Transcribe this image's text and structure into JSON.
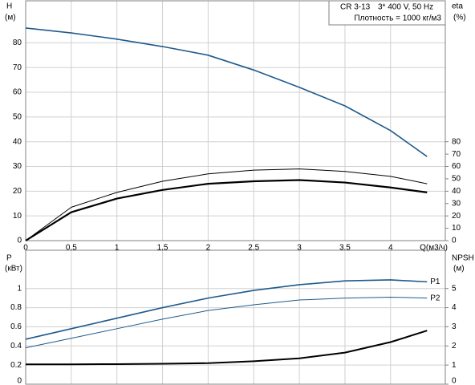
{
  "chart_data": [
    {
      "type": "line",
      "annotations": [
        "CR 3-13",
        "3* 400 V, 50 Hz",
        "Плотность = 1000 кг/м3"
      ],
      "ylabel": "H",
      "ylabel_unit": "(м)",
      "y2label": "eta",
      "y2label_unit": "(%)",
      "xlabel": "Q(м3/ч)",
      "x": [
        0,
        0.5,
        1,
        1.5,
        2,
        2.5,
        3,
        3.5,
        4,
        4.4
      ],
      "xlim": [
        0,
        4.6
      ],
      "xticks": [
        0,
        0.5,
        1,
        1.5,
        2,
        2.5,
        3,
        3.5,
        4
      ],
      "ylim": [
        0,
        97
      ],
      "yticks": [
        0,
        10,
        20,
        30,
        40,
        50,
        60,
        70,
        80
      ],
      "y2lim": [
        0,
        194
      ],
      "y2ticks": [
        0,
        10,
        20,
        30,
        40,
        50,
        60,
        70,
        80
      ],
      "grid": true,
      "series": [
        {
          "color": "#1f5a8c",
          "values": [
            86,
            84,
            81.5,
            78.5,
            75,
            69,
            62,
            54.5,
            44.5,
            34
          ]
        },
        {
          "color": "#000000",
          "axis": "y2",
          "values": [
            0,
            27,
            39,
            48,
            54,
            57,
            58,
            56,
            52,
            46
          ]
        },
        {
          "color": "#000000",
          "axis": "y2",
          "values": [
            0,
            23,
            34,
            41,
            46,
            48,
            49,
            47,
            43,
            39
          ]
        }
      ]
    },
    {
      "type": "line",
      "ylabel": "P",
      "ylabel_unit": "(кВт)",
      "y2label": "NPSH",
      "y2label_unit": "(м)",
      "x": [
        0,
        0.5,
        1,
        1.5,
        2,
        2.5,
        3,
        3.5,
        4,
        4.4
      ],
      "xlim": [
        0,
        4.6
      ],
      "ylim": [
        0,
        1.4
      ],
      "yticks": [
        0,
        0.2,
        0.4,
        0.6,
        0.8,
        1
      ],
      "y2lim": [
        0,
        7
      ],
      "y2ticks": [
        0,
        1,
        2,
        3,
        4,
        5
      ],
      "grid": true,
      "series": [
        {
          "name": "P1",
          "color": "#1f5a8c",
          "values": [
            0.47,
            0.58,
            0.69,
            0.8,
            0.9,
            0.98,
            1.04,
            1.08,
            1.09,
            1.07
          ]
        },
        {
          "name": "P2",
          "color": "#1f5a8c",
          "values": [
            0.38,
            0.48,
            0.58,
            0.68,
            0.77,
            0.83,
            0.88,
            0.9,
            0.91,
            0.9
          ]
        },
        {
          "color": "#000000",
          "axis": "y2",
          "values": [
            1.04,
            1.04,
            1.05,
            1.07,
            1.1,
            1.2,
            1.35,
            1.65,
            2.2,
            2.8
          ]
        }
      ]
    }
  ]
}
